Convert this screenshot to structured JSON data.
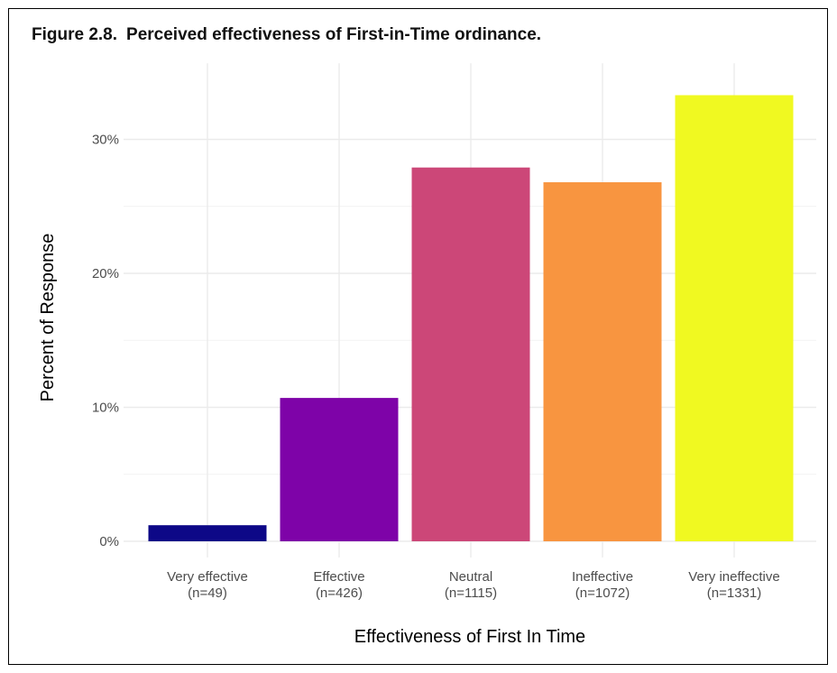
{
  "caption": {
    "figure_number": "Figure 2.8.",
    "title": "Perceived effectiveness of First-in-Time ordinance."
  },
  "chart_data": {
    "type": "bar",
    "title": "Perceived effectiveness of First-in-Time ordinance.",
    "xlabel": "Effectiveness of First In Time",
    "ylabel": "Percent of Response",
    "categories": [
      "Very effective\n(n=49)",
      "Effective\n(n=426)",
      "Neutral\n(n=1115)",
      "Ineffective\n(n=1072)",
      "Very ineffective\n(n=1331)"
    ],
    "category_names": [
      "Very effective",
      "Effective",
      "Neutral",
      "Ineffective",
      "Very ineffective"
    ],
    "category_counts": [
      "(n=49)",
      "(n=426)",
      "(n=1115)",
      "(n=1072)",
      "(n=1331)"
    ],
    "values": [
      1.2,
      10.7,
      27.9,
      26.8,
      33.3
    ],
    "colors": [
      "#0d0887",
      "#7e03a8",
      "#cc4778",
      "#f89540",
      "#f0f921"
    ],
    "ylim": [
      0,
      34
    ],
    "yticks": [
      0,
      10,
      20,
      30
    ],
    "ytick_labels": [
      "0%",
      "10%",
      "20%",
      "30%"
    ],
    "grid": true,
    "legend": "none"
  }
}
